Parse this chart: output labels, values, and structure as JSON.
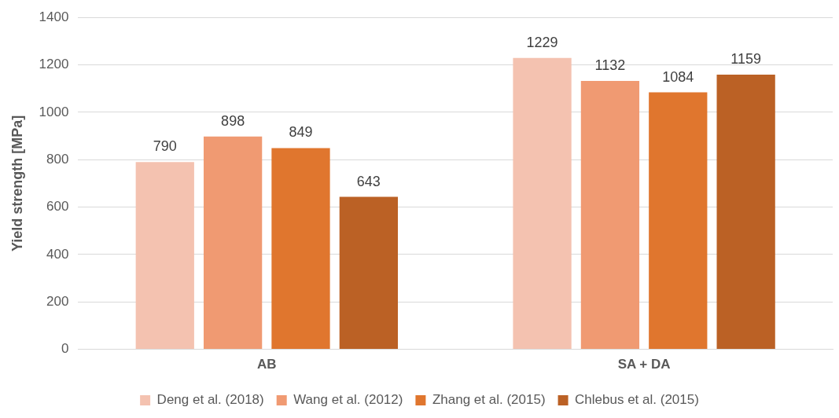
{
  "chart_data": {
    "type": "bar",
    "ylabel": "Yield strength [MPa]",
    "categories": [
      "AB",
      "SA + DA"
    ],
    "series": [
      {
        "name": "Deng et al. (2018)",
        "color": "#f4c2b0",
        "values": [
          790,
          1229
        ]
      },
      {
        "name": "Wang et al. (2012)",
        "color": "#f09a72",
        "values": [
          898,
          1132
        ]
      },
      {
        "name": "Zhang et al. (2015)",
        "color": "#e0762e",
        "values": [
          849,
          1084
        ]
      },
      {
        "name": "Chlebus et al. (2015)",
        "color": "#bb6125",
        "values": [
          643,
          1159
        ]
      }
    ],
    "ylim": [
      0,
      1400
    ],
    "yticks": [
      0,
      200,
      400,
      600,
      800,
      1000,
      1200,
      1400
    ],
    "grid": "y",
    "legend": "bottom",
    "data_labels": true
  }
}
